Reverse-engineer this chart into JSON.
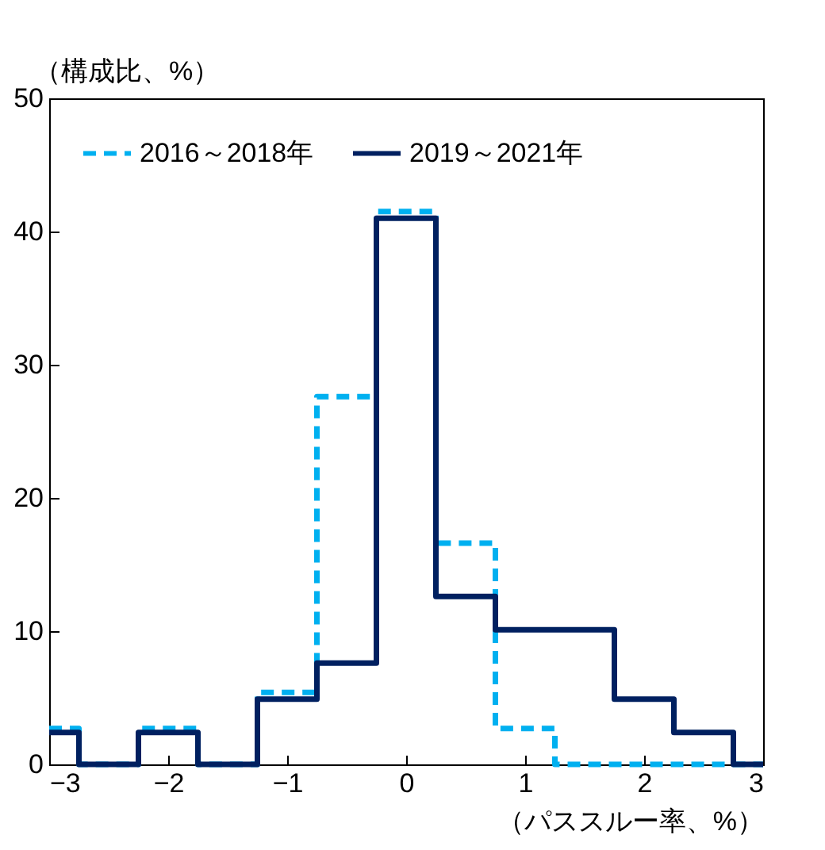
{
  "chart_data": {
    "type": "step",
    "ylabel": "（構成比、%）",
    "xlabel": "（パススルー率、%）",
    "x": [
      -3,
      -2.5,
      -2,
      -1.5,
      -1,
      -0.5,
      0,
      0.5,
      1,
      1.5,
      2,
      2.5,
      3
    ],
    "xlim": [
      -3,
      3
    ],
    "xticks": [
      -3,
      -2,
      -1,
      0,
      1,
      2,
      3
    ],
    "ylim": [
      0,
      50
    ],
    "yticks": [
      0,
      10,
      20,
      30,
      40,
      50
    ],
    "legend": "top",
    "grid": false,
    "series": [
      {
        "name": "2016～2018年",
        "color": "#00b0f0",
        "line_style": "dashed",
        "values": [
          2.7,
          0,
          2.7,
          0,
          5.4,
          27.6,
          41.5,
          16.6,
          2.7,
          0,
          0,
          0,
          0
        ]
      },
      {
        "name": "2019～2021年",
        "color": "#002060",
        "line_style": "solid",
        "values": [
          2.4,
          0,
          2.4,
          0,
          4.9,
          7.6,
          41.0,
          12.6,
          10.1,
          10.1,
          4.9,
          2.4,
          0
        ]
      }
    ]
  }
}
